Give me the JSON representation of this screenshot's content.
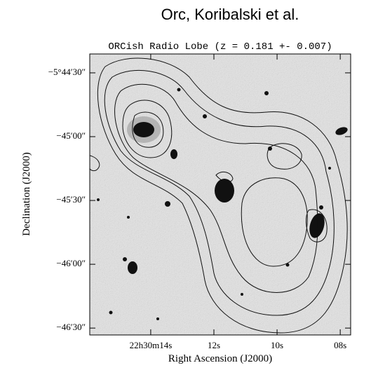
{
  "header": "Orc, Koribalski et al.",
  "chart_data": {
    "type": "image",
    "title": "ORCish Radio Lobe (z = 0.181 +- 0.007)",
    "x_label": "Right Ascension (J2000)",
    "y_label": "Declination (J2000)",
    "xlim": [
      15.93,
      7.67
    ],
    "ylim": [
      -5.7759,
      -5.7392
    ],
    "xticks": [
      {
        "value": 14,
        "label": "22h30m14s"
      },
      {
        "value": 12,
        "label": "12s"
      },
      {
        "value": 10,
        "label": "10s"
      },
      {
        "value": 8,
        "label": "08s"
      }
    ],
    "yticks": [
      {
        "value": -5.741667,
        "label": "−5°44′30″"
      },
      {
        "value": -5.75,
        "label": "−45′00″"
      },
      {
        "value": -5.758333,
        "label": "−45′30″"
      },
      {
        "value": -5.766667,
        "label": "−46′00″"
      },
      {
        "value": -5.775,
        "label": "−46′30″"
      }
    ]
  }
}
